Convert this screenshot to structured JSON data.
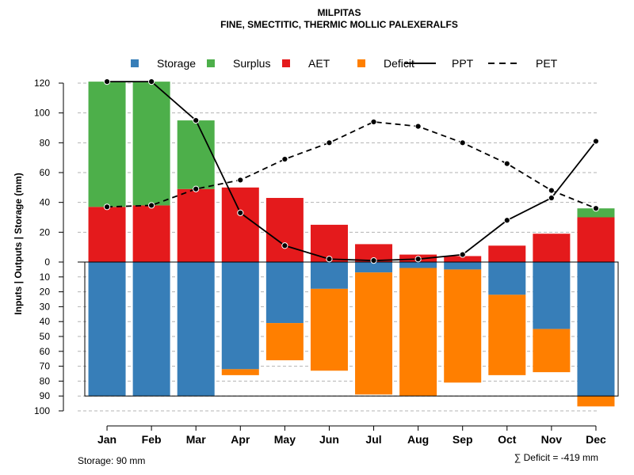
{
  "chart_data": {
    "type": "bar",
    "title": "MILPITAS",
    "subtitle": "FINE, SMECTITIC, THERMIC MOLLIC PALEXERALFS",
    "ylabel": "Inputs | Outputs | Storage    (mm)",
    "ylim_top": [
      0,
      120
    ],
    "ylim_bottom": [
      0,
      100
    ],
    "y_ticks_top": [
      0,
      20,
      40,
      60,
      80,
      100,
      120
    ],
    "y_ticks_bottom": [
      10,
      20,
      30,
      40,
      50,
      60,
      70,
      80,
      90,
      100
    ],
    "categories": [
      "Jan",
      "Feb",
      "Mar",
      "Apr",
      "May",
      "Jun",
      "Jul",
      "Aug",
      "Sep",
      "Oct",
      "Nov",
      "Dec"
    ],
    "stacked_top": [
      {
        "name": "AET",
        "values": [
          37,
          38,
          49,
          50,
          43,
          25,
          12,
          5,
          4,
          11,
          19,
          30
        ]
      },
      {
        "name": "Surplus",
        "values": [
          84,
          83,
          46,
          0,
          0,
          0,
          0,
          0,
          0,
          0,
          0,
          6
        ]
      }
    ],
    "stacked_bottom": [
      {
        "name": "Storage",
        "values": [
          90,
          90,
          90,
          72,
          41,
          18,
          7,
          4,
          5,
          22,
          45,
          90
        ]
      },
      {
        "name": "Deficit",
        "values": [
          0,
          0,
          0,
          4,
          25,
          55,
          82,
          86,
          76,
          54,
          29,
          7
        ]
      }
    ],
    "lines": [
      {
        "name": "PPT",
        "style": "solid",
        "values": [
          121,
          121,
          95,
          33,
          11,
          2,
          1,
          2,
          5,
          28,
          43,
          81
        ]
      },
      {
        "name": "PET",
        "style": "dashed",
        "values": [
          37,
          38,
          49,
          55,
          69,
          80,
          94,
          91,
          80,
          66,
          48,
          36
        ]
      }
    ],
    "storage_capacity": 90,
    "legend": [
      {
        "name": "Storage",
        "kind": "box",
        "color": "#377EB8"
      },
      {
        "name": "Surplus",
        "kind": "box",
        "color": "#4DAF4A"
      },
      {
        "name": "AET",
        "kind": "box",
        "color": "#E41A1C"
      },
      {
        "name": "Deficit",
        "kind": "box",
        "color": "#FF7F00"
      },
      {
        "name": "PPT",
        "kind": "line",
        "dash": "solid",
        "color": "#000000"
      },
      {
        "name": "PET",
        "kind": "line",
        "dash": "dashed",
        "color": "#000000"
      }
    ],
    "legend_position": "top",
    "grid": true,
    "footer_left": "Storage: 90 mm",
    "footer_right": "∑ Deficit = -419 mm"
  }
}
